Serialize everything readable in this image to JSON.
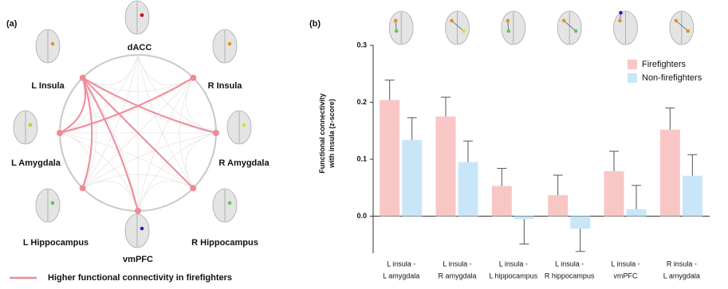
{
  "chart_data": [
    {
      "type": "network",
      "panel_label": "(a)",
      "nodes": [
        "dACC",
        "R Insula",
        "R Amygdala",
        "R Hippocampus",
        "vmPFC",
        "L Hippocampus",
        "L Amygdala",
        "L Insula"
      ],
      "edges": [
        [
          7,
          6
        ],
        [
          7,
          2
        ],
        [
          7,
          5
        ],
        [
          7,
          3
        ],
        [
          7,
          4
        ],
        [
          1,
          6
        ]
      ],
      "color": "#f08a98",
      "legend": "Higher functional connectivity in firefighters"
    },
    {
      "type": "bar",
      "panel_label": "(b)",
      "y_label": [
        "Functional connectivity",
        "with insula (z-score)"
      ],
      "categories": [
        [
          "L insula -",
          "L amygdala"
        ],
        [
          "L insula -",
          "R amygdala"
        ],
        [
          "L insula -",
          "L hippocampus"
        ],
        [
          "L insula -",
          "R hippocampus"
        ],
        [
          "L insula -",
          "vmPFC"
        ],
        [
          "R insula -",
          "L amygdala"
        ]
      ],
      "series": [
        {
          "name": "Firefighters",
          "color": "#f9c6c6",
          "values": [
            0.204,
            0.175,
            0.053,
            0.037,
            0.079,
            0.152
          ],
          "errors": [
            0.035,
            0.034,
            0.031,
            0.035,
            0.035,
            0.038
          ]
        },
        {
          "name": "Non-firefighters",
          "color": "#c8e6f8",
          "values": [
            0.134,
            0.095,
            -0.005,
            -0.022,
            0.012,
            0.071
          ],
          "errors": [
            0.039,
            0.037,
            0.044,
            0.04,
            0.042,
            0.037
          ]
        }
      ],
      "ylim": [
        -0.065,
        0.3
      ],
      "yticks": [
        {
          "value": 0,
          "label": "0.0"
        },
        {
          "value": 0.1,
          "label": "0.1"
        },
        {
          "value": 0.2,
          "label": "0.2"
        },
        {
          "value": 0.3,
          "label": "0.3"
        }
      ],
      "legend_position": "upper right"
    }
  ]
}
